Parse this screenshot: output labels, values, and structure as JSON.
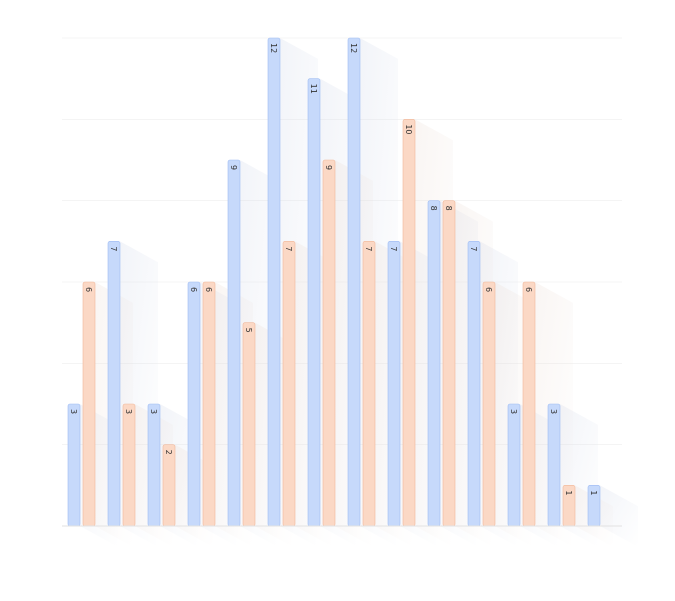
{
  "chart_data": {
    "type": "bar",
    "categories": [
      "",
      "",
      "",
      "",
      "",
      "",
      "",
      "",
      "",
      "",
      "",
      "",
      "",
      ""
    ],
    "series": [
      {
        "values": [
          3,
          7,
          3,
          6,
          9,
          12,
          11,
          12,
          7,
          8,
          7,
          3,
          3,
          1
        ]
      },
      {
        "values": [
          6,
          3,
          2,
          6,
          5,
          7,
          9,
          7,
          10,
          8,
          6,
          6,
          1,
          null
        ]
      }
    ],
    "colors": {
      "series_fill": [
        "#c6d9fb",
        "#fbd8c5"
      ],
      "series_stroke": [
        "#9fbcf2",
        "#f0b79a"
      ],
      "shadow": [
        "#cbd3e6",
        "#e9d9d0"
      ],
      "grid": "#eeeeee",
      "baseline": "#e2e2e2"
    },
    "ylim": [
      0,
      12
    ],
    "grid": true,
    "data_labels": true,
    "data_label_orientation": "rotated",
    "legend": "none"
  }
}
